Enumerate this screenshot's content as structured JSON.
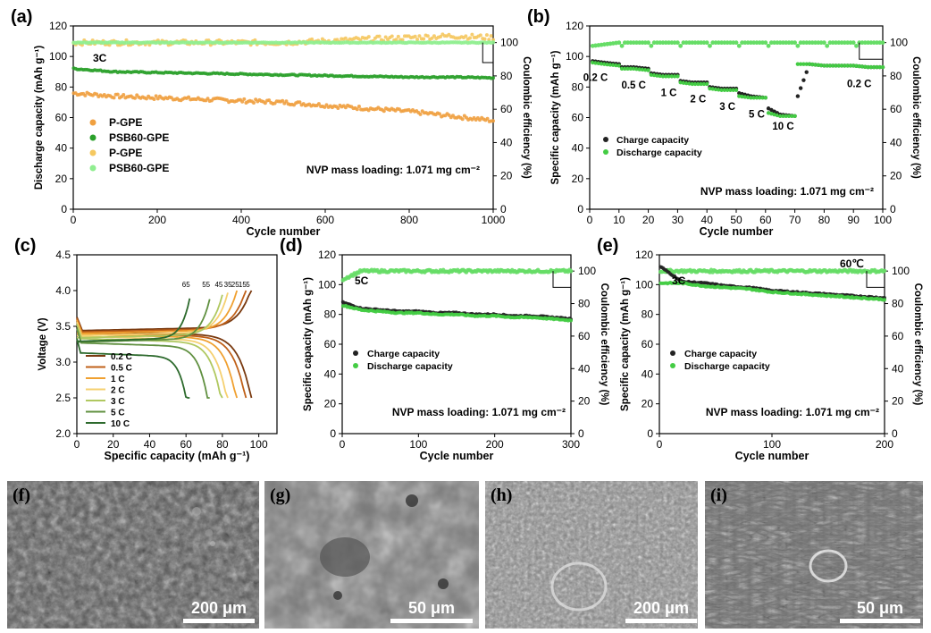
{
  "chart_data": [
    {
      "panel": "(a)",
      "type": "scatter",
      "xlabel": "Cycle number",
      "ylabel": "Discharge capacity (mAh g⁻¹)",
      "y2label": "Coulombic efficiency (%)",
      "xlim": [
        0,
        1000
      ],
      "ylim": [
        0,
        120
      ],
      "y2lim": [
        0,
        110
      ],
      "xticks": [
        0,
        200,
        400,
        600,
        800,
        1000
      ],
      "yticks": [
        0,
        20,
        40,
        60,
        80,
        100,
        120
      ],
      "y2ticks": [
        0,
        20,
        40,
        60,
        80,
        100
      ],
      "rate_label": "3C",
      "annotation": "NVP mass loading: 1.071 mg cm⁻²",
      "legend_position": "lower-left",
      "series": [
        {
          "name": "P-GPE",
          "axis": "left",
          "color": "#f0a040",
          "x": [
            1,
            100,
            200,
            300,
            400,
            500,
            600,
            700,
            800,
            900,
            1000
          ],
          "y": [
            76,
            74,
            73,
            72,
            71,
            70,
            68,
            66,
            64,
            61,
            58
          ]
        },
        {
          "name": "PSB60-GPE",
          "axis": "left",
          "color": "#2aa02a",
          "x": [
            1,
            100,
            200,
            300,
            400,
            500,
            600,
            700,
            800,
            900,
            1000
          ],
          "y": [
            92,
            90,
            89.5,
            89,
            88.5,
            88,
            87.5,
            87,
            86.5,
            86.5,
            86
          ]
        },
        {
          "name": "P-GPE",
          "axis": "right",
          "color": "#f5c860",
          "x": [
            1,
            100,
            200,
            300,
            400,
            500,
            600,
            700,
            800,
            900,
            1000
          ],
          "y": [
            100,
            100,
            100,
            100,
            100,
            100,
            101,
            102,
            103,
            104,
            103
          ]
        },
        {
          "name": "PSB60-GPE",
          "axis": "right",
          "color": "#90ee90",
          "x": [
            1,
            100,
            200,
            300,
            400,
            500,
            600,
            700,
            800,
            900,
            1000
          ],
          "y": [
            100,
            100,
            100,
            100,
            100,
            100,
            100,
            100,
            100,
            100,
            100
          ]
        }
      ]
    },
    {
      "panel": "(b)",
      "type": "scatter",
      "xlabel": "Cycle number",
      "ylabel": "Specific capacity (mAh g⁻¹)",
      "y2label": "Coulombic efficiency (%)",
      "xlim": [
        0,
        100
      ],
      "ylim": [
        0,
        120
      ],
      "y2lim": [
        0,
        110
      ],
      "xticks": [
        0,
        10,
        20,
        30,
        40,
        50,
        60,
        70,
        80,
        90,
        100
      ],
      "yticks": [
        0,
        20,
        40,
        60,
        80,
        100,
        120
      ],
      "y2ticks": [
        0,
        20,
        40,
        60,
        80,
        100
      ],
      "annotation": "NVP mass loading: 1.071 mg cm⁻²",
      "legend_position": "middle-left",
      "rate_labels": [
        "0.2 C",
        "0.5 C",
        "1 C",
        "2 C",
        "3 C",
        "5 C",
        "10 C",
        "0.2 C"
      ],
      "series": [
        {
          "name": "Charge capacity",
          "axis": "left",
          "color": "#222222",
          "x": [
            1,
            5,
            10,
            11,
            15,
            20,
            21,
            25,
            30,
            31,
            35,
            40,
            41,
            45,
            50,
            51,
            55,
            60,
            61,
            65,
            70,
            71,
            75,
            80,
            85,
            90,
            95,
            100
          ],
          "y": [
            97,
            96,
            95,
            93,
            93,
            92,
            89,
            88,
            88,
            84,
            83,
            83,
            80,
            79,
            79,
            76,
            74,
            73,
            66,
            62,
            61,
            74,
            95,
            94,
            94,
            94,
            93,
            93
          ]
        },
        {
          "name": "Discharge capacity",
          "axis": "left",
          "color": "#44cc44",
          "x": [
            1,
            5,
            10,
            11,
            15,
            20,
            21,
            25,
            30,
            31,
            35,
            40,
            41,
            45,
            50,
            51,
            55,
            60,
            61,
            65,
            70,
            71,
            75,
            80,
            85,
            90,
            95,
            100
          ],
          "y": [
            96,
            95,
            94,
            92,
            92,
            91,
            88,
            87,
            87,
            83,
            82,
            82,
            79,
            78,
            78,
            74,
            73,
            73,
            63,
            61,
            61,
            95,
            95,
            94,
            94,
            94,
            93,
            93
          ]
        },
        {
          "name": "Coulombic efficiency",
          "axis": "right",
          "color": "#66dd66",
          "x": [
            1,
            10,
            20,
            30,
            40,
            50,
            60,
            70,
            80,
            90,
            100
          ],
          "y": [
            98,
            100,
            100,
            100,
            100,
            100,
            100,
            100,
            100,
            100,
            100
          ]
        }
      ]
    },
    {
      "panel": "(c)",
      "type": "line",
      "xlabel": "Specific capacity (mAh g⁻¹)",
      "ylabel": "Voltage (V)",
      "xlim": [
        0,
        110
      ],
      "ylim": [
        2.0,
        4.5
      ],
      "xticks": [
        0,
        20,
        40,
        60,
        80,
        100
      ],
      "yticks": [
        2.0,
        2.5,
        3.0,
        3.5,
        4.0,
        4.5
      ],
      "top_labels": [
        "65",
        "55",
        "45",
        "35",
        "25",
        "15",
        "5"
      ],
      "legend_position": "lower-left",
      "series": [
        {
          "name": "0.2 C",
          "color": "#7a3a10",
          "capacity": 96,
          "plateau": 3.38
        },
        {
          "name": "0.5 C",
          "color": "#c06018",
          "capacity": 93,
          "plateau": 3.36
        },
        {
          "name": "1 C",
          "color": "#f0a030",
          "capacity": 88,
          "plateau": 3.34
        },
        {
          "name": "2 C",
          "color": "#f5d070",
          "capacity": 83,
          "plateau": 3.31
        },
        {
          "name": "3 C",
          "color": "#b0c860",
          "capacity": 80,
          "plateau": 3.28
        },
        {
          "name": "5 C",
          "color": "#609040",
          "capacity": 73,
          "plateau": 3.22
        },
        {
          "name": "10 C",
          "color": "#2d6a2d",
          "capacity": 62,
          "plateau": 3.08
        }
      ]
    },
    {
      "panel": "(d)",
      "type": "scatter",
      "xlabel": "Cycle number",
      "ylabel": "Specific capacity (mAh g⁻¹)",
      "y2label": "Coulombic efficiency (%)",
      "xlim": [
        0,
        300
      ],
      "ylim": [
        0,
        120
      ],
      "y2lim": [
        0,
        110
      ],
      "xticks": [
        0,
        100,
        200,
        300
      ],
      "yticks": [
        0,
        20,
        40,
        60,
        80,
        100,
        120
      ],
      "y2ticks": [
        0,
        20,
        40,
        60,
        80,
        100
      ],
      "rate_label": "5C",
      "annotation": "NVP mass loading: 1.071 mg cm⁻²",
      "legend_position": "middle-left",
      "series": [
        {
          "name": "Charge capacity",
          "axis": "left",
          "color": "#222222",
          "x": [
            1,
            25,
            50,
            75,
            100,
            125,
            150,
            175,
            200,
            225,
            250,
            275,
            300
          ],
          "y": [
            88,
            84,
            83,
            82,
            82,
            81,
            81,
            80,
            80,
            79,
            79,
            78,
            77
          ]
        },
        {
          "name": "Discharge capacity",
          "axis": "left",
          "color": "#44cc44",
          "x": [
            1,
            25,
            50,
            75,
            100,
            125,
            150,
            175,
            200,
            225,
            250,
            275,
            300
          ],
          "y": [
            86,
            83,
            82,
            81,
            81,
            80,
            80,
            79,
            79,
            78,
            78,
            77,
            76
          ]
        },
        {
          "name": "Coulombic efficiency",
          "axis": "right",
          "color": "#66dd66",
          "x": [
            1,
            25,
            50,
            75,
            100,
            125,
            150,
            175,
            200,
            225,
            250,
            275,
            300
          ],
          "y": [
            95,
            100,
            100,
            100,
            100,
            100,
            100,
            100,
            100,
            100,
            100,
            100,
            100
          ]
        }
      ]
    },
    {
      "panel": "(e)",
      "type": "scatter",
      "xlabel": "Cycle number",
      "ylabel": "Specific capacity (mAh g⁻¹)",
      "y2label": "Coulombic efficiency (%)",
      "xlim": [
        0,
        200
      ],
      "ylim": [
        0,
        120
      ],
      "y2lim": [
        0,
        110
      ],
      "xticks": [
        0,
        100,
        200
      ],
      "yticks": [
        0,
        20,
        40,
        60,
        80,
        100,
        120
      ],
      "y2ticks": [
        0,
        20,
        40,
        60,
        80,
        100
      ],
      "rate_label": "3C",
      "temperature_label": "60℃",
      "annotation": "NVP mass loading: 1.071 mg cm⁻²",
      "legend_position": "middle-left",
      "series": [
        {
          "name": "Charge capacity",
          "axis": "left",
          "color": "#222222",
          "x": [
            1,
            20,
            40,
            60,
            80,
            100,
            120,
            140,
            160,
            180,
            200
          ],
          "y": [
            112,
            102,
            101,
            99,
            98,
            96,
            95,
            94,
            93,
            92,
            91
          ]
        },
        {
          "name": "Discharge capacity",
          "axis": "left",
          "color": "#44cc44",
          "x": [
            1,
            20,
            40,
            60,
            80,
            100,
            120,
            140,
            160,
            180,
            200
          ],
          "y": [
            101,
            101,
            99,
            98,
            97,
            95,
            94,
            93,
            92,
            91,
            90
          ]
        },
        {
          "name": "Coulombic efficiency",
          "axis": "right",
          "color": "#66dd66",
          "x": [
            1,
            20,
            40,
            60,
            80,
            100,
            120,
            140,
            160,
            180,
            200
          ],
          "y": [
            100,
            100,
            100,
            100,
            100,
            100,
            100,
            100,
            100,
            100,
            100
          ]
        }
      ]
    }
  ],
  "images": [
    {
      "label": "(f)",
      "scale_bar": "200 μm"
    },
    {
      "label": "(g)",
      "scale_bar": "50 μm"
    },
    {
      "label": "(h)",
      "scale_bar": "200 μm"
    },
    {
      "label": "(i)",
      "scale_bar": "50 μm"
    }
  ]
}
